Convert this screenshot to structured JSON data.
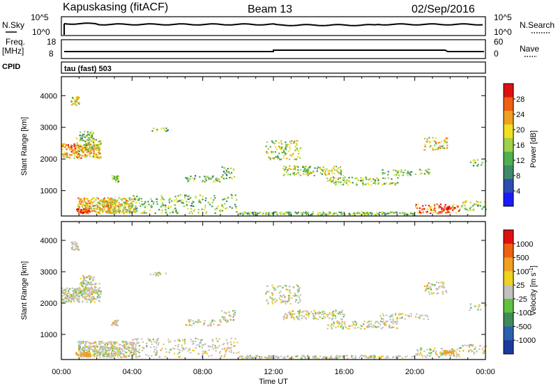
{
  "header": {
    "station": "Kapuskasing (fitACF)",
    "beam": "Beam 13",
    "date": "02/Sep/2016"
  },
  "meta_panels": {
    "nsky_label": "N.Sky",
    "nsearch_label": "N.Search",
    "freq_label_1": "Freq.",
    "freq_label_2": "[MHz]",
    "nave_label": "Nave",
    "cpid_label": "CPID",
    "cpid_value": "tau (fast) 503",
    "noise_ticks": [
      "10^5",
      "10^0"
    ],
    "noise_right_ticks": [
      "10^5",
      "10^0"
    ],
    "freq_ticks": [
      "18",
      "8"
    ],
    "nave_ticks": [
      "60",
      "0"
    ]
  },
  "chart_data": [
    {
      "type": "heatmap",
      "name": "power",
      "ylabel": "Slant Range [km]",
      "xlabel": "",
      "x_ticks": [
        "00:00",
        "04:00",
        "08:00",
        "12:00",
        "16:00",
        "20:00",
        "00:00"
      ],
      "y_ticks": [
        1000,
        2000,
        3000,
        4000
      ],
      "ylim": [
        200,
        4600
      ],
      "xlim_hours": [
        0,
        24
      ],
      "colorbar": {
        "label": "Power [dB]",
        "ticks": [
          "4",
          "8",
          "12",
          "16",
          "20",
          "24",
          "28"
        ],
        "colors": [
          "#1a1aff",
          "#2a4fb0",
          "#3f8a6a",
          "#4fb04f",
          "#9fd04a",
          "#f0e020",
          "#f0a020",
          "#f06010",
          "#e01010"
        ]
      }
    },
    {
      "type": "heatmap",
      "name": "velocity",
      "ylabel": "Slant Range [km]",
      "xlabel": "Time UT",
      "x_ticks": [
        "00:00",
        "04:00",
        "08:00",
        "12:00",
        "16:00",
        "20:00",
        "00:00"
      ],
      "y_ticks": [
        1000,
        2000,
        3000,
        4000
      ],
      "ylim": [
        200,
        4600
      ],
      "xlim_hours": [
        0,
        24
      ],
      "colorbar": {
        "label": "Velocity [m s^-1]",
        "ticks": [
          "1000",
          "500",
          "100",
          "25",
          "-25",
          "-100",
          "-500",
          "-1000"
        ],
        "colors": [
          "#1a3aa0",
          "#2a60b0",
          "#3f8a5a",
          "#60c040",
          "#c0c0c0",
          "#f0d020",
          "#f0a020",
          "#f06010",
          "#e01010"
        ]
      }
    }
  ]
}
